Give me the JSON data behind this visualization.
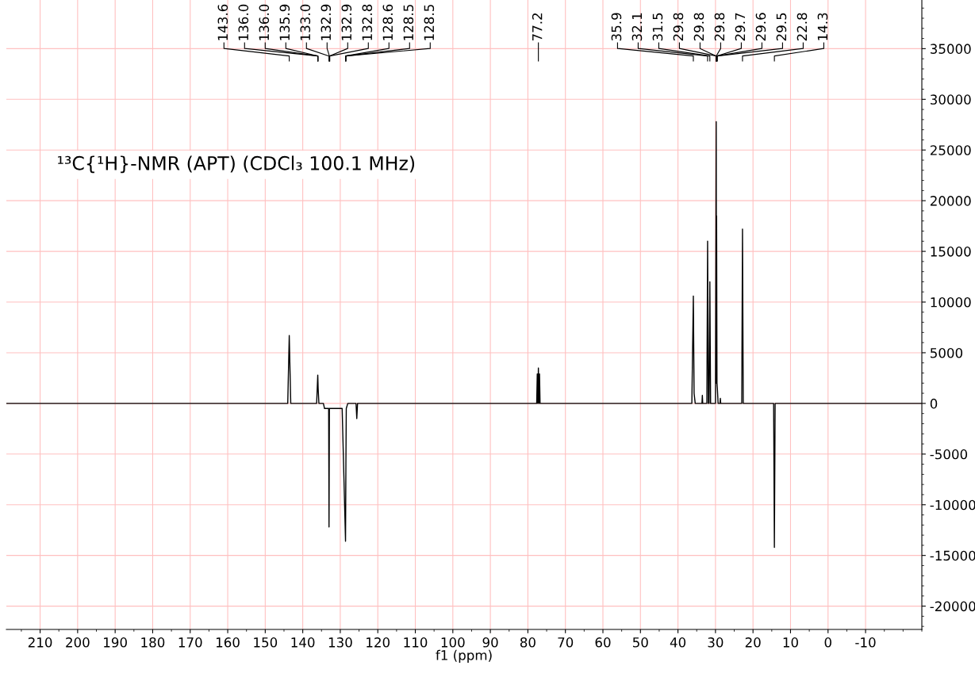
{
  "chart_data": {
    "type": "line",
    "title": "¹³C{¹H}-NMR (APT) (CDCl₃ 100.1 MHz)",
    "xlabel": "f1 (ppm)",
    "x": [
      219,
      144.0,
      143.6,
      143.2,
      136.3,
      136.0,
      135.9,
      135.7,
      134.5,
      134.2,
      133.1,
      133.0,
      132.9,
      132.8,
      129.5,
      128.6,
      128.5,
      128.4,
      128.0,
      125.8,
      125.6,
      125.4,
      77.65,
      77.5,
      77.35,
      77.2,
      77.05,
      76.9,
      76.75,
      36.3,
      35.9,
      35.7,
      35.4,
      33.6,
      33.5,
      33.4,
      32.3,
      32.1,
      31.9,
      31.7,
      31.5,
      31.3,
      30.0,
      29.8,
      29.75,
      29.7,
      29.6,
      29.5,
      29.3,
      28.8,
      28.7,
      28.6,
      23.0,
      22.8,
      22.6,
      14.5,
      14.3,
      14.1,
      -25
    ],
    "series": [
      {
        "color": "#000000",
        "values": [
          0,
          0,
          6700,
          0,
          0,
          2800,
          1500,
          0,
          0,
          -500,
          -500,
          -12200,
          -500,
          -500,
          -500,
          -13600,
          -6000,
          -500,
          0,
          0,
          -1500,
          0,
          0,
          2900,
          0,
          3500,
          0,
          2900,
          0,
          0,
          10600,
          1000,
          0,
          0,
          800,
          0,
          0,
          16000,
          0,
          0,
          12000,
          0,
          0,
          27800,
          2000,
          18500,
          2000,
          1500,
          0,
          0,
          500,
          0,
          0,
          17200,
          0,
          0,
          -14200,
          0,
          0
        ]
      }
    ],
    "xlim": [
      219,
      -25
    ],
    "xticks": [
      210,
      200,
      190,
      180,
      170,
      160,
      150,
      140,
      130,
      120,
      110,
      100,
      90,
      80,
      70,
      60,
      50,
      40,
      30,
      20,
      10,
      0,
      -10
    ],
    "ylim": [
      -22300,
      39800
    ],
    "yticks": [
      -20000,
      -15000,
      -10000,
      -5000,
      0,
      5000,
      10000,
      15000,
      20000,
      25000,
      30000,
      35000
    ],
    "grid": true,
    "line_style": "solid",
    "marker": "none",
    "annotations": [
      "143.6",
      "136.0",
      "136.0",
      "135.9",
      "133.0",
      "132.9",
      "132.9",
      "132.8",
      "128.6",
      "128.5",
      "128.5",
      "77.2",
      "35.9",
      "32.1",
      "31.5",
      "29.8",
      "29.8",
      "29.8",
      "29.7",
      "29.6",
      "29.5",
      "22.8",
      "14.3"
    ]
  }
}
